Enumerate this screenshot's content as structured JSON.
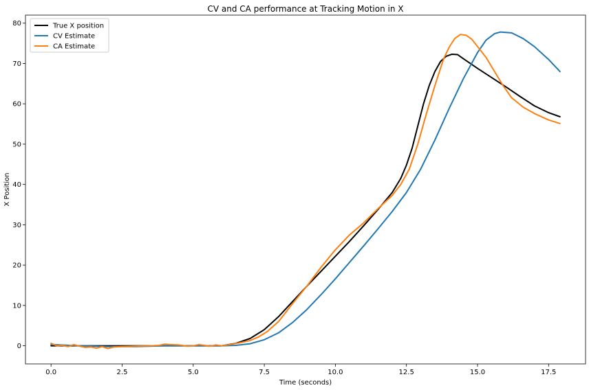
{
  "chart_data": {
    "type": "line",
    "title": "CV and CA performance at Tracking Motion in X",
    "xlabel": "Time (seconds)",
    "ylabel": "X Position",
    "xlim": [
      -0.9,
      18.8
    ],
    "ylim": [
      -4.5,
      82
    ],
    "xticks": [
      0.0,
      2.5,
      5.0,
      7.5,
      10.0,
      12.5,
      15.0,
      17.5
    ],
    "xtick_labels": [
      "0.0",
      "2.5",
      "5.0",
      "7.5",
      "10.0",
      "12.5",
      "15.0",
      "17.5"
    ],
    "yticks": [
      0,
      10,
      20,
      30,
      40,
      50,
      60,
      70,
      80
    ],
    "ytick_labels": [
      "0",
      "10",
      "20",
      "30",
      "40",
      "50",
      "60",
      "70",
      "80"
    ],
    "grid": false,
    "legend_position": "top-left",
    "series": [
      {
        "name": "True X position",
        "color": "#000000",
        "x": [
          0,
          1,
          2,
          3,
          4,
          5,
          6,
          6.5,
          7,
          7.5,
          8,
          8.5,
          9,
          9.5,
          10,
          10.5,
          11,
          11.5,
          12,
          12.3,
          12.5,
          12.7,
          12.9,
          13.1,
          13.3,
          13.5,
          13.7,
          13.9,
          14.1,
          14.3,
          14.5,
          15,
          15.5,
          16,
          16.5,
          17,
          17.5,
          17.9
        ],
        "y": [
          0,
          0,
          0,
          0,
          0,
          0,
          0,
          0.6,
          1.8,
          4.0,
          7.2,
          11.0,
          14.8,
          18.5,
          22.2,
          25.9,
          29.8,
          33.8,
          38.0,
          41.5,
          44.8,
          49.0,
          54.5,
          60.0,
          64.5,
          68.0,
          70.5,
          71.8,
          72.3,
          72.2,
          71.2,
          68.8,
          66.5,
          64.2,
          61.8,
          59.5,
          57.8,
          56.8
        ]
      },
      {
        "name": "CV Estimate",
        "color": "#1f77b4",
        "x": [
          0,
          1,
          2,
          3,
          4,
          5,
          6,
          6.5,
          7,
          7.5,
          8,
          8.5,
          9,
          9.5,
          10,
          10.5,
          11,
          11.5,
          12,
          12.5,
          13,
          13.5,
          14,
          14.5,
          15,
          15.3,
          15.6,
          15.8,
          16.2,
          16.6,
          17,
          17.5,
          17.9
        ],
        "y": [
          0.3,
          0,
          -0.2,
          -0.2,
          0,
          0,
          0,
          0.1,
          0.5,
          1.5,
          3.2,
          5.8,
          9.0,
          12.7,
          16.6,
          20.7,
          24.8,
          29.0,
          33.3,
          38.0,
          43.8,
          51.0,
          58.8,
          66.2,
          72.7,
          75.8,
          77.4,
          77.8,
          77.6,
          76.2,
          74.2,
          71.0,
          68.0
        ]
      },
      {
        "name": "CA Estimate",
        "color": "#ff7f0e",
        "x": [
          0,
          0.2,
          0.4,
          0.6,
          0.8,
          1.0,
          1.2,
          1.4,
          1.6,
          1.8,
          2.0,
          2.2,
          2.5,
          3.0,
          3.5,
          3.8,
          4.0,
          4.2,
          4.5,
          4.8,
          5.0,
          5.2,
          5.4,
          5.6,
          5.8,
          6.0,
          6.3,
          6.6,
          7.0,
          7.3,
          7.6,
          8.0,
          8.5,
          9.0,
          9.5,
          10.0,
          10.5,
          11.0,
          11.5,
          12.0,
          12.3,
          12.6,
          12.9,
          13.2,
          13.5,
          13.8,
          14.0,
          14.2,
          14.4,
          14.6,
          14.8,
          15.0,
          15.3,
          15.6,
          15.9,
          16.2,
          16.6,
          17.0,
          17.5,
          17.9
        ],
        "y": [
          0.6,
          0,
          0.1,
          -0.2,
          0.3,
          -0.1,
          -0.4,
          -0.3,
          -0.6,
          -0.2,
          -0.7,
          -0.3,
          -0.2,
          -0.1,
          0,
          0.1,
          0.4,
          0.3,
          0.2,
          -0.1,
          0,
          0.3,
          0.1,
          -0.1,
          0.2,
          0,
          0.3,
          0.7,
          1.3,
          2.2,
          3.5,
          6.0,
          10.5,
          14.8,
          19.5,
          23.8,
          27.5,
          30.5,
          34.0,
          37.3,
          40.0,
          43.8,
          50.0,
          57.5,
          64.5,
          71.0,
          74.0,
          76.2,
          77.2,
          77.0,
          76.0,
          74.2,
          71.5,
          68.0,
          64.5,
          61.5,
          59.2,
          57.6,
          56.0,
          55.1
        ]
      }
    ]
  }
}
